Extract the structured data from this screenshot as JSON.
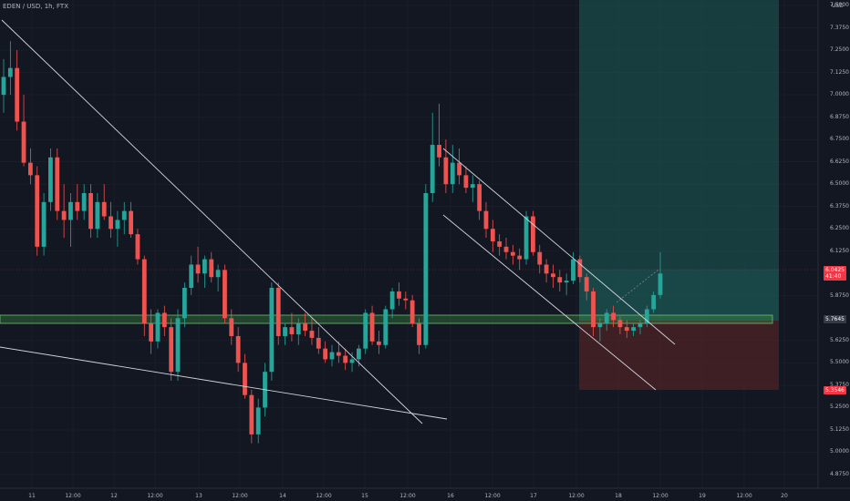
{
  "header": {
    "title": "EDEN / USD, 1h, FTX"
  },
  "price_axis": {
    "currency": "USD",
    "ticks": [
      "7.5000",
      "7.3750",
      "7.2500",
      "7.1250",
      "7.0000",
      "6.8750",
      "6.7500",
      "6.6250",
      "6.5000",
      "6.3750",
      "6.2500",
      "6.1250",
      "5.8750",
      "5.6250",
      "5.5000",
      "5.3750",
      "5.2500",
      "5.1250",
      "5.0000",
      "4.8750"
    ]
  },
  "time_axis": {
    "labels": [
      "11",
      "12:00",
      "12",
      "12:00",
      "13",
      "12:00",
      "14",
      "12:00",
      "15",
      "12:00",
      "16",
      "12:00",
      "17",
      "12:00",
      "18",
      "12:00",
      "19",
      "12:00",
      "20"
    ]
  },
  "badges": {
    "current_price": "6.0425",
    "countdown": "41:40",
    "support_price": "5.7645",
    "stop_price": "5.3546",
    "colors": {
      "current": "#f23645",
      "support": "#363a45",
      "stop": "#f23645"
    }
  },
  "colors": {
    "up": "#26a69a",
    "down": "#ef5350",
    "target_zone": "#1b5c55",
    "stop_zone": "#5c2426",
    "support_zone": "#4caf50"
  },
  "chart_data": {
    "type": "candlestick",
    "symbol": "EDEN / USD",
    "interval": "1h",
    "exchange": "FTX",
    "y_range": [
      4.8,
      7.6
    ],
    "current_price": 6.0425,
    "support_level": 5.7645,
    "position": {
      "entry": 6.0425,
      "target": 7.6,
      "stop": 5.3546
    },
    "candles": [
      [
        7.0,
        7.2,
        6.9,
        7.1
      ],
      [
        7.1,
        7.3,
        7.0,
        7.15
      ],
      [
        7.15,
        7.25,
        6.8,
        6.85
      ],
      [
        6.85,
        7.0,
        6.6,
        6.62
      ],
      [
        6.62,
        6.7,
        6.5,
        6.55
      ],
      [
        6.55,
        6.6,
        6.1,
        6.15
      ],
      [
        6.15,
        6.45,
        6.1,
        6.4
      ],
      [
        6.4,
        6.7,
        6.35,
        6.65
      ],
      [
        6.65,
        6.7,
        6.3,
        6.35
      ],
      [
        6.35,
        6.5,
        6.2,
        6.3
      ],
      [
        6.3,
        6.45,
        6.15,
        6.4
      ],
      [
        6.4,
        6.5,
        6.3,
        6.35
      ],
      [
        6.35,
        6.5,
        6.3,
        6.45
      ],
      [
        6.45,
        6.5,
        6.2,
        6.25
      ],
      [
        6.25,
        6.45,
        6.2,
        6.4
      ],
      [
        6.4,
        6.5,
        6.3,
        6.32
      ],
      [
        6.32,
        6.4,
        6.2,
        6.25
      ],
      [
        6.25,
        6.35,
        6.15,
        6.3
      ],
      [
        6.3,
        6.4,
        6.22,
        6.35
      ],
      [
        6.35,
        6.4,
        6.2,
        6.22
      ],
      [
        6.22,
        6.25,
        6.05,
        6.08
      ],
      [
        6.08,
        6.1,
        5.65,
        5.72
      ],
      [
        5.72,
        5.8,
        5.55,
        5.62
      ],
      [
        5.62,
        5.8,
        5.58,
        5.78
      ],
      [
        5.78,
        5.82,
        5.65,
        5.7
      ],
      [
        5.7,
        5.75,
        5.4,
        5.45
      ],
      [
        5.45,
        5.8,
        5.4,
        5.75
      ],
      [
        5.75,
        5.95,
        5.7,
        5.92
      ],
      [
        5.92,
        6.1,
        5.88,
        6.05
      ],
      [
        6.05,
        6.15,
        5.95,
        6.0
      ],
      [
        6.0,
        6.1,
        5.92,
        6.08
      ],
      [
        6.08,
        6.12,
        5.95,
        5.98
      ],
      [
        5.98,
        6.05,
        5.9,
        6.02
      ],
      [
        6.02,
        6.05,
        5.72,
        5.75
      ],
      [
        5.75,
        5.8,
        5.6,
        5.65
      ],
      [
        5.65,
        5.7,
        5.45,
        5.5
      ],
      [
        5.5,
        5.55,
        5.3,
        5.32
      ],
      [
        5.32,
        5.35,
        5.05,
        5.1
      ],
      [
        5.1,
        5.3,
        5.05,
        5.25
      ],
      [
        5.25,
        5.5,
        5.2,
        5.45
      ],
      [
        5.45,
        5.95,
        5.4,
        5.92
      ],
      [
        5.92,
        5.95,
        5.6,
        5.65
      ],
      [
        5.65,
        5.72,
        5.6,
        5.7
      ],
      [
        5.7,
        5.78,
        5.62,
        5.66
      ],
      [
        5.66,
        5.75,
        5.6,
        5.72
      ],
      [
        5.72,
        5.78,
        5.65,
        5.68
      ],
      [
        5.68,
        5.75,
        5.6,
        5.64
      ],
      [
        5.64,
        5.7,
        5.55,
        5.58
      ],
      [
        5.58,
        5.62,
        5.5,
        5.52
      ],
      [
        5.52,
        5.6,
        5.48,
        5.56
      ],
      [
        5.56,
        5.62,
        5.5,
        5.54
      ],
      [
        5.54,
        5.58,
        5.46,
        5.5
      ],
      [
        5.5,
        5.56,
        5.45,
        5.52
      ],
      [
        5.52,
        5.6,
        5.48,
        5.58
      ],
      [
        5.58,
        5.8,
        5.55,
        5.78
      ],
      [
        5.78,
        5.82,
        5.6,
        5.62
      ],
      [
        5.62,
        5.68,
        5.55,
        5.6
      ],
      [
        5.6,
        5.82,
        5.58,
        5.8
      ],
      [
        5.8,
        5.92,
        5.75,
        5.9
      ],
      [
        5.9,
        5.95,
        5.82,
        5.86
      ],
      [
        5.86,
        5.9,
        5.8,
        5.85
      ],
      [
        5.85,
        5.88,
        5.7,
        5.72
      ],
      [
        5.72,
        5.75,
        5.55,
        5.6
      ],
      [
        5.6,
        6.5,
        5.58,
        6.45
      ],
      [
        6.45,
        6.9,
        6.4,
        6.72
      ],
      [
        6.72,
        6.95,
        6.6,
        6.65
      ],
      [
        6.65,
        6.75,
        6.45,
        6.5
      ],
      [
        6.5,
        6.72,
        6.45,
        6.62
      ],
      [
        6.62,
        6.7,
        6.5,
        6.55
      ],
      [
        6.55,
        6.6,
        6.45,
        6.48
      ],
      [
        6.48,
        6.55,
        6.4,
        6.5
      ],
      [
        6.5,
        6.52,
        6.3,
        6.35
      ],
      [
        6.35,
        6.4,
        6.2,
        6.25
      ],
      [
        6.25,
        6.3,
        6.12,
        6.18
      ],
      [
        6.18,
        6.22,
        6.1,
        6.15
      ],
      [
        6.15,
        6.2,
        6.08,
        6.12
      ],
      [
        6.12,
        6.16,
        6.05,
        6.1
      ],
      [
        6.1,
        6.14,
        6.02,
        6.08
      ],
      [
        6.08,
        6.35,
        6.05,
        6.32
      ],
      [
        6.32,
        6.35,
        6.1,
        6.12
      ],
      [
        6.12,
        6.16,
        6.0,
        6.05
      ],
      [
        6.05,
        6.08,
        5.95,
        6.0
      ],
      [
        6.0,
        6.05,
        5.92,
        5.98
      ],
      [
        5.98,
        6.02,
        5.9,
        5.95
      ],
      [
        5.95,
        6.0,
        5.88,
        5.96
      ],
      [
        5.96,
        6.12,
        5.94,
        6.08
      ],
      [
        6.08,
        6.1,
        5.95,
        5.98
      ],
      [
        5.98,
        6.0,
        5.85,
        5.9
      ],
      [
        5.9,
        5.92,
        5.65,
        5.7
      ],
      [
        5.7,
        5.75,
        5.62,
        5.72
      ],
      [
        5.72,
        5.8,
        5.68,
        5.78
      ],
      [
        5.78,
        5.82,
        5.7,
        5.74
      ],
      [
        5.74,
        5.76,
        5.66,
        5.7
      ],
      [
        5.7,
        5.74,
        5.64,
        5.68
      ],
      [
        5.68,
        5.72,
        5.65,
        5.7
      ],
      [
        5.7,
        5.74,
        5.66,
        5.72
      ],
      [
        5.72,
        5.82,
        5.7,
        5.8
      ],
      [
        5.8,
        5.9,
        5.78,
        5.88
      ],
      [
        5.88,
        6.12,
        5.86,
        6.0
      ]
    ]
  }
}
